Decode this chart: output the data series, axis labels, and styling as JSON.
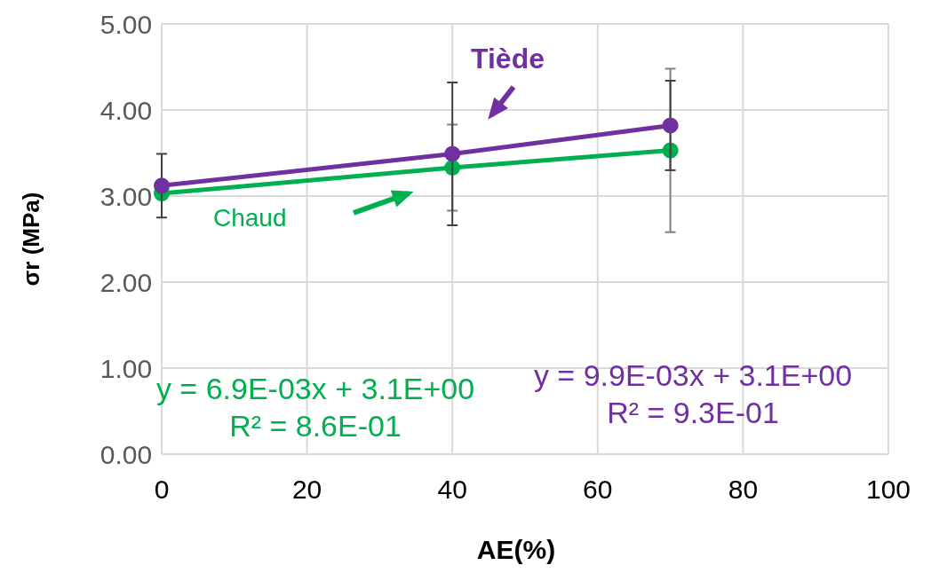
{
  "chart_data": {
    "type": "line",
    "xlabel": "AE(%)",
    "ylabel": "σr (MPa)",
    "x": [
      0,
      40,
      70
    ],
    "series": [
      {
        "name": "Chaud",
        "color": "#00b050",
        "values": [
          3.03,
          3.33,
          3.53
        ],
        "errors": [
          null,
          0.5,
          0.95
        ]
      },
      {
        "name": "Tiède",
        "color": "#7030a0",
        "values": [
          3.12,
          3.49,
          3.82
        ],
        "errors": [
          0.37,
          0.83,
          0.52
        ]
      }
    ],
    "xlim": [
      0,
      100
    ],
    "xticks": [
      0,
      20,
      40,
      60,
      80,
      100
    ],
    "ylim": [
      0,
      5
    ],
    "yticks": [
      {
        "value": 0,
        "label": "0.00"
      },
      {
        "value": 1,
        "label": "1.00"
      },
      {
        "value": 2,
        "label": "2.00"
      },
      {
        "value": 3,
        "label": "3.00"
      },
      {
        "value": 4,
        "label": "4.00"
      },
      {
        "value": 5,
        "label": "5.00"
      }
    ],
    "grid": true,
    "marker": "circle",
    "line_style": "solid",
    "annotations": [
      "y = 6.9E-03x + 3.1E+00\nR² = 8.6E-01",
      "y = 9.9E-03x + 3.1E+00\nR² = 9.3E-01"
    ]
  }
}
